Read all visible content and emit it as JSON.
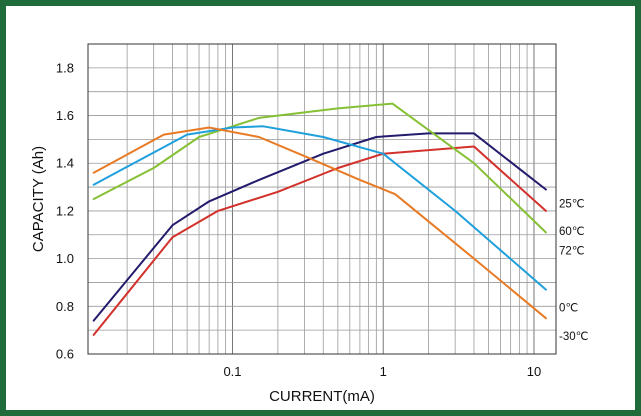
{
  "chart_data": {
    "type": "line",
    "title": "",
    "xlabel": "CURRENT(mA)",
    "ylabel": "CAPACITY (Ah)",
    "x_scale": "log",
    "xlim": [
      0.011,
      14
    ],
    "ylim": [
      0.6,
      1.9
    ],
    "x_ticks": [
      {
        "value": 0.1,
        "label": "0.1"
      },
      {
        "value": 1,
        "label": "1"
      },
      {
        "value": 10,
        "label": "10"
      }
    ],
    "y_ticks": [
      {
        "value": 0.6,
        "label": "0.6"
      },
      {
        "value": 0.8,
        "label": "0.8"
      },
      {
        "value": 1.0,
        "label": "1.0"
      },
      {
        "value": 1.2,
        "label": "1.2"
      },
      {
        "value": 1.4,
        "label": "1.4"
      },
      {
        "value": 1.6,
        "label": "1.6"
      },
      {
        "value": 1.8,
        "label": "1.8"
      }
    ],
    "grid": true,
    "legend": "inline labels at right end of each line",
    "series": [
      {
        "name": "25℃",
        "color": "#231b6b",
        "x": [
          0.012,
          0.04,
          0.07,
          0.15,
          0.4,
          0.9,
          2,
          4,
          12
        ],
        "y": [
          0.74,
          1.14,
          1.24,
          1.33,
          1.44,
          1.51,
          1.525,
          1.525,
          1.29
        ]
      },
      {
        "name": "60℃",
        "color": "#d2312c",
        "x": [
          0.012,
          0.04,
          0.08,
          0.2,
          0.5,
          1,
          2,
          4,
          12
        ],
        "y": [
          0.68,
          1.09,
          1.2,
          1.28,
          1.38,
          1.44,
          1.455,
          1.47,
          1.2
        ]
      },
      {
        "name": "72℃",
        "color": "#86c034",
        "x": [
          0.012,
          0.03,
          0.06,
          0.15,
          0.5,
          1.15,
          4,
          12
        ],
        "y": [
          1.25,
          1.38,
          1.51,
          1.59,
          1.63,
          1.65,
          1.4,
          1.11
        ]
      },
      {
        "name": "0℃",
        "color": "#1fa0dc",
        "x": [
          0.012,
          0.05,
          0.1,
          0.16,
          0.4,
          1,
          3,
          12
        ],
        "y": [
          1.31,
          1.52,
          1.55,
          1.555,
          1.51,
          1.44,
          1.2,
          0.87
        ]
      },
      {
        "name": "-30℃",
        "color": "#e87a24",
        "x": [
          0.012,
          0.035,
          0.07,
          0.15,
          0.3,
          0.7,
          1.2,
          4,
          12
        ],
        "y": [
          1.36,
          1.52,
          1.55,
          1.51,
          1.43,
          1.33,
          1.27,
          1.0,
          0.75
        ]
      }
    ]
  }
}
